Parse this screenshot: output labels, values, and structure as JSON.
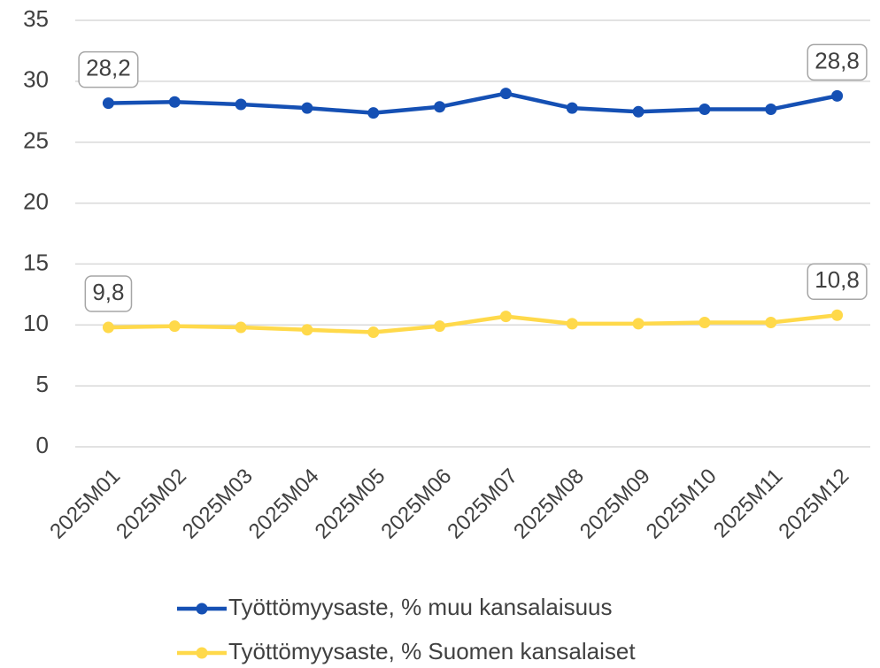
{
  "chart_data": {
    "type": "line",
    "categories": [
      "2025M01",
      "2025M02",
      "2025M03",
      "2025M04",
      "2025M05",
      "2025M06",
      "2025M07",
      "2025M08",
      "2025M09",
      "2025M10",
      "2025M11",
      "2025M12"
    ],
    "series": [
      {
        "name": "Työttömyysaste, % muu kansalaisuus",
        "color": "#1550b4",
        "values": [
          28.2,
          28.3,
          28.1,
          27.8,
          27.4,
          27.9,
          29.0,
          27.8,
          27.5,
          27.7,
          27.7,
          28.8
        ],
        "value_labels": [
          "28,2",
          null,
          null,
          null,
          null,
          null,
          null,
          null,
          null,
          null,
          null,
          "28,8"
        ]
      },
      {
        "name": "Työttömyysaste, % Suomen kansalaiset",
        "color": "#ffd94a",
        "values": [
          9.8,
          9.9,
          9.8,
          9.6,
          9.4,
          9.9,
          10.7,
          10.1,
          10.1,
          10.2,
          10.2,
          10.8
        ],
        "value_labels": [
          "9,8",
          null,
          null,
          null,
          null,
          null,
          null,
          null,
          null,
          null,
          null,
          "10,8"
        ]
      }
    ],
    "ylim": [
      0,
      35
    ],
    "yticks": [
      0,
      5,
      10,
      15,
      20,
      25,
      30,
      35
    ],
    "grid": true,
    "legend": "bottom"
  }
}
